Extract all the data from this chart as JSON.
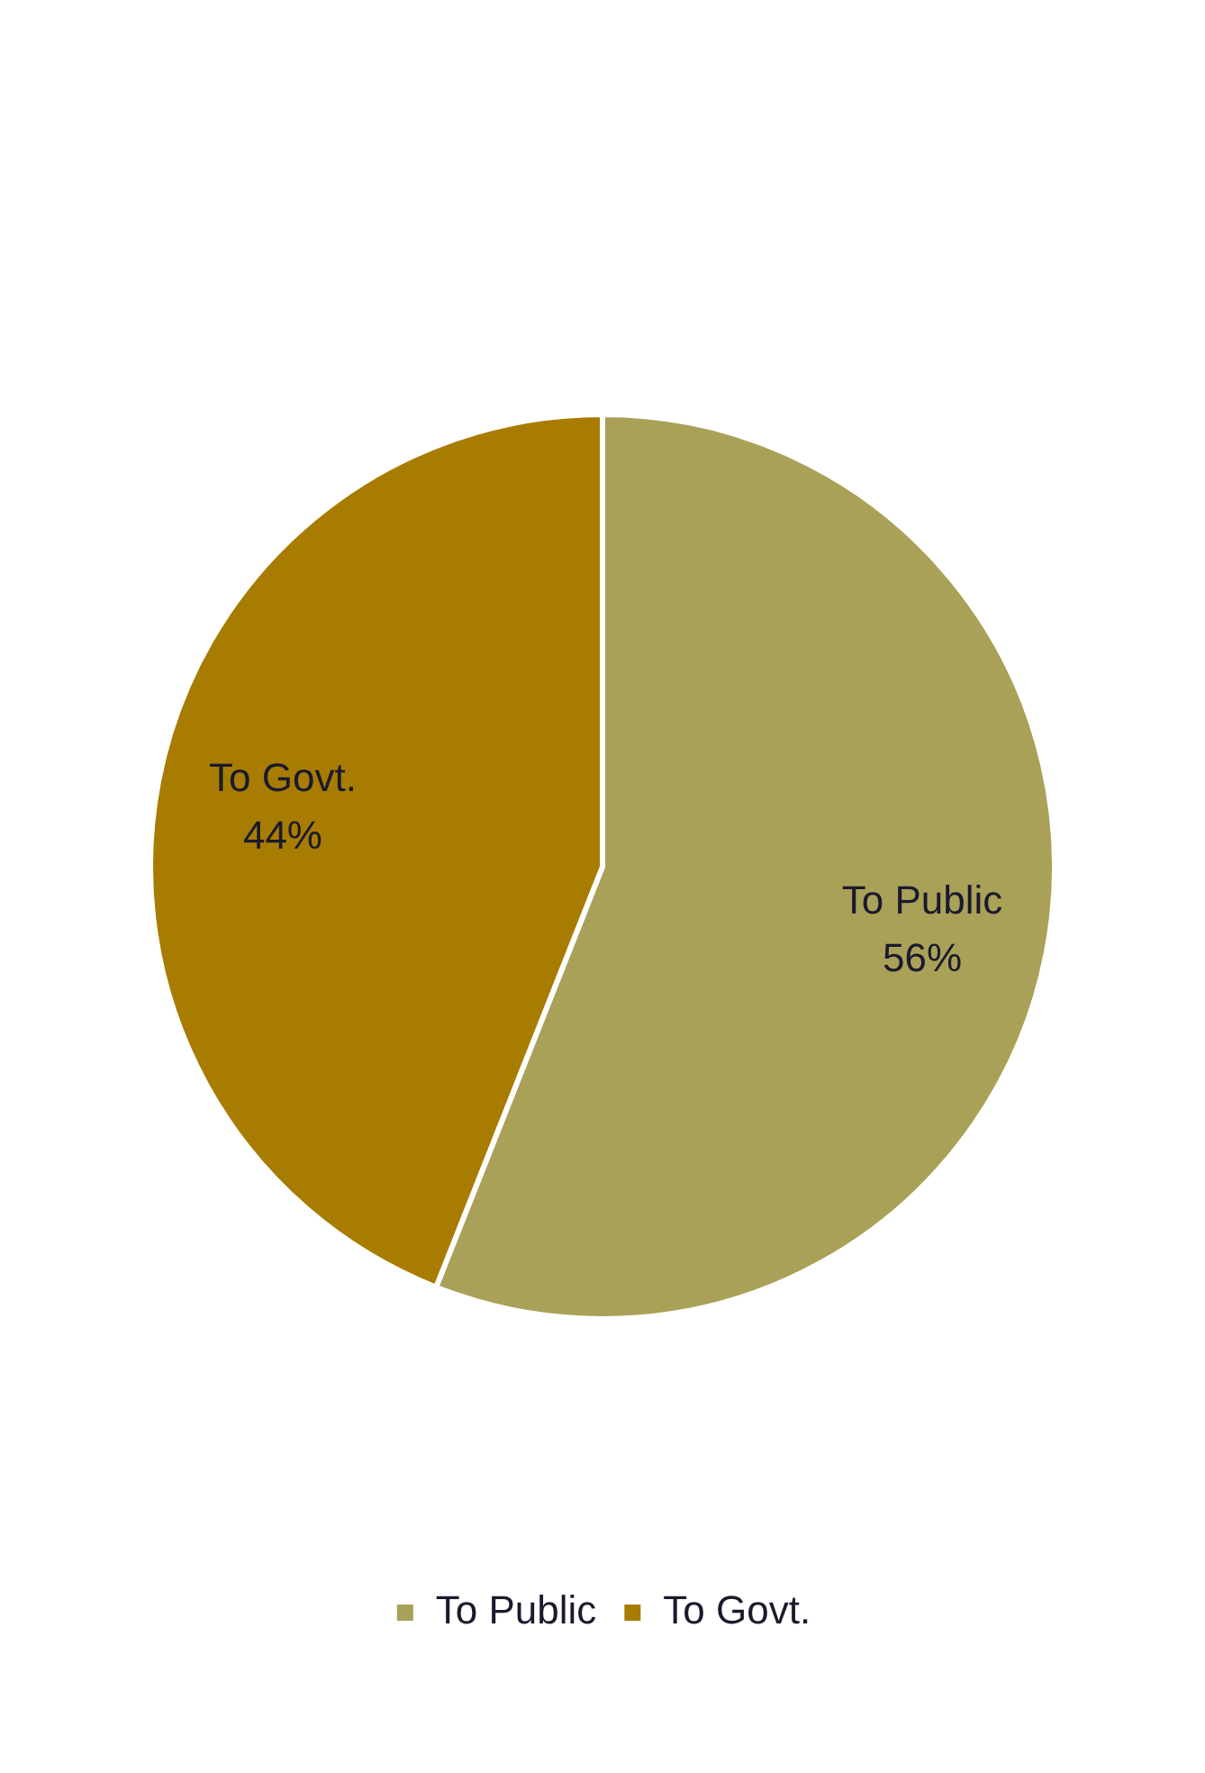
{
  "chart_data": {
    "type": "pie",
    "categories": [
      "To Public",
      "To Govt."
    ],
    "values": [
      56,
      44
    ],
    "colors": [
      "#a9a157",
      "#a87c00"
    ],
    "value_labels": [
      "56%",
      "44%"
    ],
    "legend": "bottom"
  }
}
